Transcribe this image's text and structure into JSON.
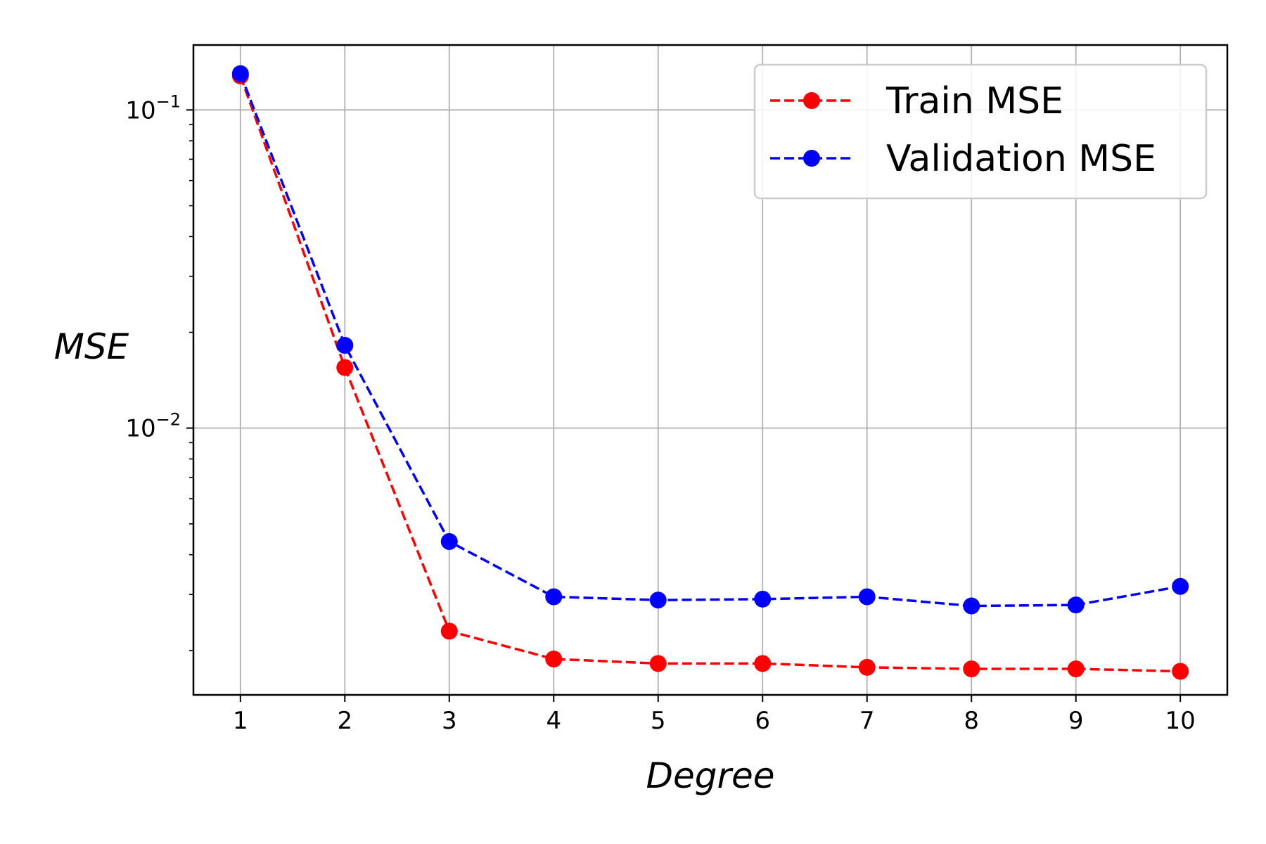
{
  "chart_data": {
    "type": "line",
    "title": "",
    "xlabel": "Degree",
    "ylabel": "MSE",
    "yscale": "log",
    "x": [
      1,
      2,
      3,
      4,
      5,
      6,
      7,
      8,
      9,
      10
    ],
    "xlim": [
      0.55,
      10.45
    ],
    "ylim": [
      0.00145,
      0.16
    ],
    "x_ticks": [
      "1",
      "2",
      "3",
      "4",
      "5",
      "6",
      "7",
      "8",
      "9",
      "10"
    ],
    "y_ticks": [
      {
        "value": 0.1,
        "base": "10",
        "exp": "−1"
      },
      {
        "value": 0.01,
        "base": "10",
        "exp": "−2"
      }
    ],
    "grid": true,
    "legend_position": "top-right",
    "series": [
      {
        "name": "Train MSE",
        "color": "#ff0000",
        "linestyle": "dashed",
        "marker": "circle",
        "values": [
          0.128,
          0.0155,
          0.0023,
          0.00188,
          0.00182,
          0.00182,
          0.00177,
          0.00175,
          0.00175,
          0.00172
        ]
      },
      {
        "name": "Validation MSE",
        "color": "#0000ff",
        "linestyle": "dashed",
        "marker": "circle",
        "values": [
          0.13,
          0.0182,
          0.0044,
          0.00295,
          0.00288,
          0.0029,
          0.00295,
          0.00276,
          0.00278,
          0.00318
        ]
      }
    ]
  }
}
